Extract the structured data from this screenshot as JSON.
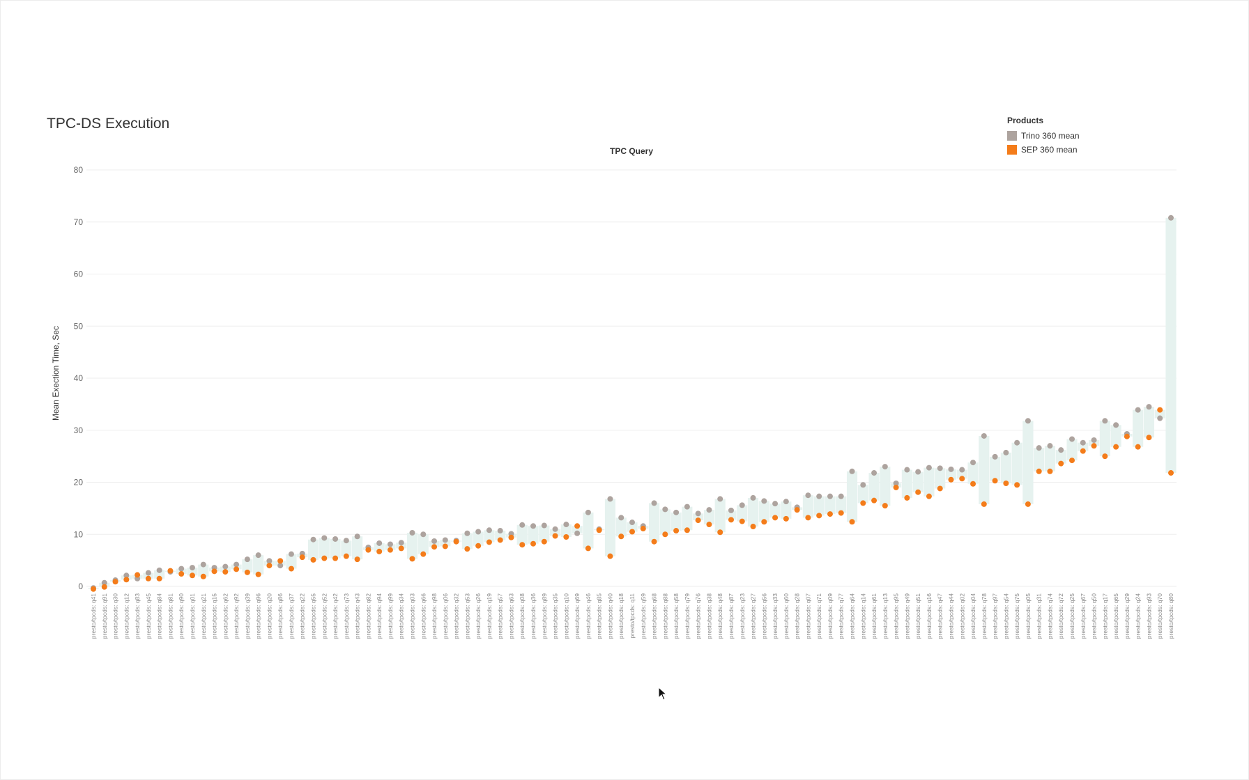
{
  "chart_data": {
    "type": "scatter",
    "title": "TPC-DS Execution",
    "xlabel": "TPC Query",
    "ylabel": "Mean Exection Time, Sec",
    "ylim": [
      0,
      80
    ],
    "yticks": [
      0,
      10,
      20,
      30,
      40,
      50,
      60,
      70,
      80
    ],
    "legend_title": "Products",
    "legend_position": "top-right",
    "grid": true,
    "band_color": "#e6f2ef",
    "categories": [
      "presto/tpcds: q41",
      "presto/tpcds: q91",
      "presto/tpcds: q30",
      "presto/tpcds: q12",
      "presto/tpcds: q83",
      "presto/tpcds: q45",
      "presto/tpcds: q84",
      "presto/tpcds: q81",
      "presto/tpcds: q90",
      "presto/tpcds: q01",
      "presto/tpcds: q21",
      "presto/tpcds: q15",
      "presto/tpcds: q62",
      "presto/tpcds: q92",
      "presto/tpcds: q39",
      "presto/tpcds: q96",
      "presto/tpcds: q20",
      "presto/tpcds: q86",
      "presto/tpcds: q37",
      "presto/tpcds: q22",
      "presto/tpcds: q55",
      "presto/tpcds: q52",
      "presto/tpcds: q42",
      "presto/tpcds: q73",
      "presto/tpcds: q43",
      "presto/tpcds: q82",
      "presto/tpcds: q94",
      "presto/tpcds: q99",
      "presto/tpcds: q34",
      "presto/tpcds: q03",
      "presto/tpcds: q66",
      "presto/tpcds: q98",
      "presto/tpcds: q06",
      "presto/tpcds: q32",
      "presto/tpcds: q53",
      "presto/tpcds: q26",
      "presto/tpcds: q19",
      "presto/tpcds: q57",
      "presto/tpcds: q63",
      "presto/tpcds: q08",
      "presto/tpcds: q36",
      "presto/tpcds: q89",
      "presto/tpcds: q35",
      "presto/tpcds: q10",
      "presto/tpcds: q69",
      "presto/tpcds: q46",
      "presto/tpcds: q85",
      "presto/tpcds: q40",
      "presto/tpcds: q18",
      "presto/tpcds: q11",
      "presto/tpcds: q59",
      "presto/tpcds: q68",
      "presto/tpcds: q88",
      "presto/tpcds: q58",
      "presto/tpcds: q79",
      "presto/tpcds: q76",
      "presto/tpcds: q38",
      "presto/tpcds: q48",
      "presto/tpcds: q87",
      "presto/tpcds: q23",
      "presto/tpcds: q27",
      "presto/tpcds: q56",
      "presto/tpcds: q33",
      "presto/tpcds: q60",
      "presto/tpcds: q28",
      "presto/tpcds: q07",
      "presto/tpcds: q71",
      "presto/tpcds: q09",
      "presto/tpcds: q77",
      "presto/tpcds: q64",
      "presto/tpcds: q14",
      "presto/tpcds: q61",
      "presto/tpcds: q13",
      "presto/tpcds: q95",
      "presto/tpcds: q49",
      "presto/tpcds: q51",
      "presto/tpcds: q16",
      "presto/tpcds: q47",
      "presto/tpcds: q44",
      "presto/tpcds: q02",
      "presto/tpcds: q04",
      "presto/tpcds: q78",
      "presto/tpcds: q97",
      "presto/tpcds: q54",
      "presto/tpcds: q75",
      "presto/tpcds: q05",
      "presto/tpcds: q31",
      "presto/tpcds: q74",
      "presto/tpcds: q72",
      "presto/tpcds: q25",
      "presto/tpcds: q67",
      "presto/tpcds: q50",
      "presto/tpcds: q17",
      "presto/tpcds: q65",
      "presto/tpcds: q29",
      "presto/tpcds: q24",
      "presto/tpcds: q93",
      "presto/tpcds: q70",
      "presto/tpcds: q80"
    ],
    "series": [
      {
        "name": "Trino 360 mean",
        "color": "#ada39e",
        "values": [
          -0.3,
          0.7,
          1.2,
          2.1,
          1.5,
          2.6,
          3.1,
          2.8,
          3.4,
          3.6,
          4.2,
          3.6,
          3.8,
          4.2,
          5.2,
          6.0,
          4.9,
          4.0,
          6.2,
          6.3,
          9.0,
          9.3,
          9.1,
          8.8,
          9.6,
          7.5,
          8.3,
          8.1,
          8.4,
          10.3,
          10.0,
          8.7,
          8.9,
          8.8,
          10.2,
          10.5,
          10.8,
          10.7,
          10.1,
          11.8,
          11.6,
          11.7,
          11.0,
          11.9,
          10.2,
          14.2,
          11.0,
          16.8,
          13.2,
          12.3,
          11.6,
          16.0,
          14.8,
          14.2,
          15.3,
          14.0,
          14.7,
          16.8,
          14.6,
          15.6,
          17.0,
          16.4,
          15.9,
          16.3,
          15.2,
          17.5,
          17.3,
          17.3,
          17.3,
          22.1,
          19.5,
          21.8,
          23.0,
          19.8,
          22.4,
          22.0,
          22.8,
          22.7,
          22.5,
          22.4,
          23.8,
          28.9,
          24.9,
          25.7,
          27.6,
          31.8,
          26.6,
          27.0,
          26.2,
          28.3,
          27.6,
          28.1,
          31.8,
          31.0,
          29.3,
          33.9,
          34.5,
          32.3,
          70.8
        ]
      },
      {
        "name": "SEP 360 mean",
        "color": "#f47c1a",
        "values": [
          -0.5,
          -0.1,
          0.9,
          1.3,
          2.2,
          1.5,
          1.5,
          3.0,
          2.4,
          2.1,
          1.9,
          2.9,
          2.8,
          3.3,
          2.7,
          2.3,
          4.0,
          4.9,
          3.4,
          5.6,
          5.1,
          5.4,
          5.4,
          5.8,
          5.2,
          7.0,
          6.7,
          7.0,
          7.3,
          5.3,
          6.2,
          7.6,
          7.7,
          8.6,
          7.2,
          7.8,
          8.5,
          8.9,
          9.4,
          8.0,
          8.2,
          8.6,
          9.7,
          9.5,
          11.6,
          7.3,
          10.8,
          5.8,
          9.6,
          10.5,
          11.1,
          8.6,
          10.0,
          10.7,
          10.8,
          12.7,
          11.9,
          10.4,
          12.8,
          12.5,
          11.5,
          12.4,
          13.2,
          13.0,
          14.7,
          13.2,
          13.6,
          13.9,
          14.1,
          12.4,
          16.0,
          16.5,
          15.5,
          19.0,
          17.0,
          18.1,
          17.3,
          18.8,
          20.5,
          20.7,
          19.7,
          15.8,
          20.3,
          19.8,
          19.5,
          15.8,
          22.1,
          22.1,
          23.6,
          24.2,
          26.0,
          27.0,
          25.0,
          26.8,
          28.8,
          26.8,
          28.6,
          33.9,
          21.8
        ]
      }
    ]
  },
  "legend": {
    "title": "Products",
    "items": [
      "Trino 360 mean",
      "SEP 360 mean"
    ]
  },
  "cursor": "arrow-cursor"
}
